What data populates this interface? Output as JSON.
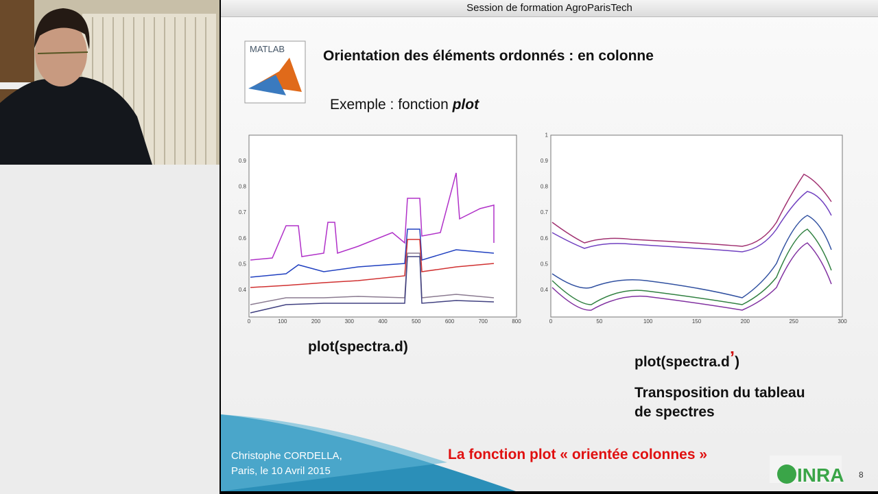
{
  "header": {
    "title": "Session de formation AgroParisTech"
  },
  "logo": {
    "label": "MATLAB"
  },
  "slide": {
    "title": "Orientation des éléments ordonnés : en colonne",
    "example": {
      "text": "Exemple : fonction ",
      "emphasis": "plot"
    },
    "left_plot": {
      "yticks": [
        "0.4",
        "0.5",
        "0.6",
        "0.7",
        "0.8",
        "0.9"
      ],
      "xticks": [
        "0",
        "100",
        "200",
        "300",
        "400",
        "500",
        "600",
        "700",
        "800"
      ],
      "caption": "plot(spectra.d)"
    },
    "right_plot": {
      "yticks": [
        "0.4",
        "0.5",
        "0.6",
        "0.7",
        "0.8",
        "0.9",
        "1"
      ],
      "xticks": [
        "0",
        "50",
        "100",
        "150",
        "200",
        "250",
        "300"
      ],
      "caption": {
        "start": "plot(spectra.d",
        "prime": "’",
        "end": ")"
      }
    },
    "note": [
      "Transposition du tableau",
      "de spectres"
    ],
    "highlight": "La fonction plot « orientée colonnes »",
    "author": [
      "Christophe CORDELLA,",
      "Paris, le 10 Avril 2015"
    ],
    "brand": "INRA",
    "page": "8"
  }
}
